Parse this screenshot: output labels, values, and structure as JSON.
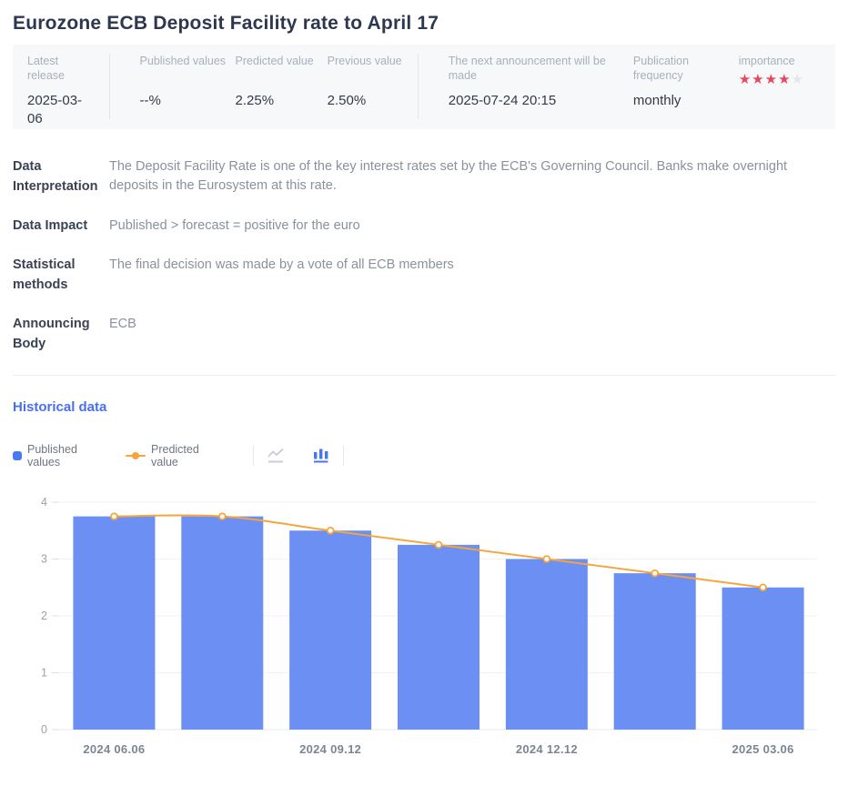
{
  "page_title": "Eurozone ECB Deposit Facility rate to April 17",
  "summary": {
    "latest_release": {
      "label": "Latest release",
      "value": "2025-03-06"
    },
    "published_values": {
      "label": "Published values",
      "value": "--%"
    },
    "predicted_value": {
      "label": "Predicted value",
      "value": "2.25%"
    },
    "previous_value": {
      "label": "Previous value",
      "value": "2.50%"
    },
    "next_announcement": {
      "label": "The next announcement will be made",
      "value": "2025-07-24 20:15"
    },
    "publication_frequency": {
      "label": "Publication frequency",
      "value": "monthly"
    },
    "importance": {
      "label": "importance",
      "filled_stars": 4,
      "total_stars": 5,
      "filled_color": "#e8465a",
      "empty_color": "#e4e6ea"
    }
  },
  "info_rows": [
    {
      "label": "Data Interpretation",
      "content": "The Deposit Facility Rate is one of the key interest rates set by the ECB's Governing Council. Banks make overnight deposits in the Eurosystem at this rate."
    },
    {
      "label": "Data Impact",
      "content": "Published > forecast = positive for the euro"
    },
    {
      "label": "Statistical methods",
      "content": "The final decision was made by a vote of all ECB members"
    },
    {
      "label": "Announcing Body",
      "content": "ECB"
    }
  ],
  "historical": {
    "heading": "Historical data",
    "legend": [
      {
        "label": "Published values",
        "color": "#4a7af0",
        "marker": "square"
      },
      {
        "label": "Predicted value",
        "color": "#f5a53c",
        "marker": "line-dot"
      }
    ],
    "toolbar": [
      {
        "icon": "line-chart-icon",
        "active": false
      },
      {
        "icon": "bar-chart-icon",
        "active": true
      }
    ]
  },
  "chart_data": {
    "type": "bar",
    "categories": [
      "2024 06.06",
      "",
      "2024 09.12",
      "",
      "2024 12.12",
      "",
      "2025 03.06"
    ],
    "series": [
      {
        "name": "Published values",
        "type": "bar",
        "color": "#6b8ff2",
        "values": [
          3.75,
          3.75,
          3.5,
          3.25,
          3.0,
          2.75,
          2.5
        ]
      },
      {
        "name": "Predicted value",
        "type": "line",
        "color": "#f5a53c",
        "values": [
          3.75,
          3.75,
          3.5,
          3.25,
          3.0,
          2.75,
          2.5
        ]
      }
    ],
    "title": "",
    "xlabel": "",
    "ylabel": "",
    "ylim": [
      0,
      4
    ],
    "y_ticks": [
      0,
      1,
      2,
      3,
      4
    ],
    "grid": true,
    "legend_position": "top-left",
    "line_marker": "open-circle"
  }
}
